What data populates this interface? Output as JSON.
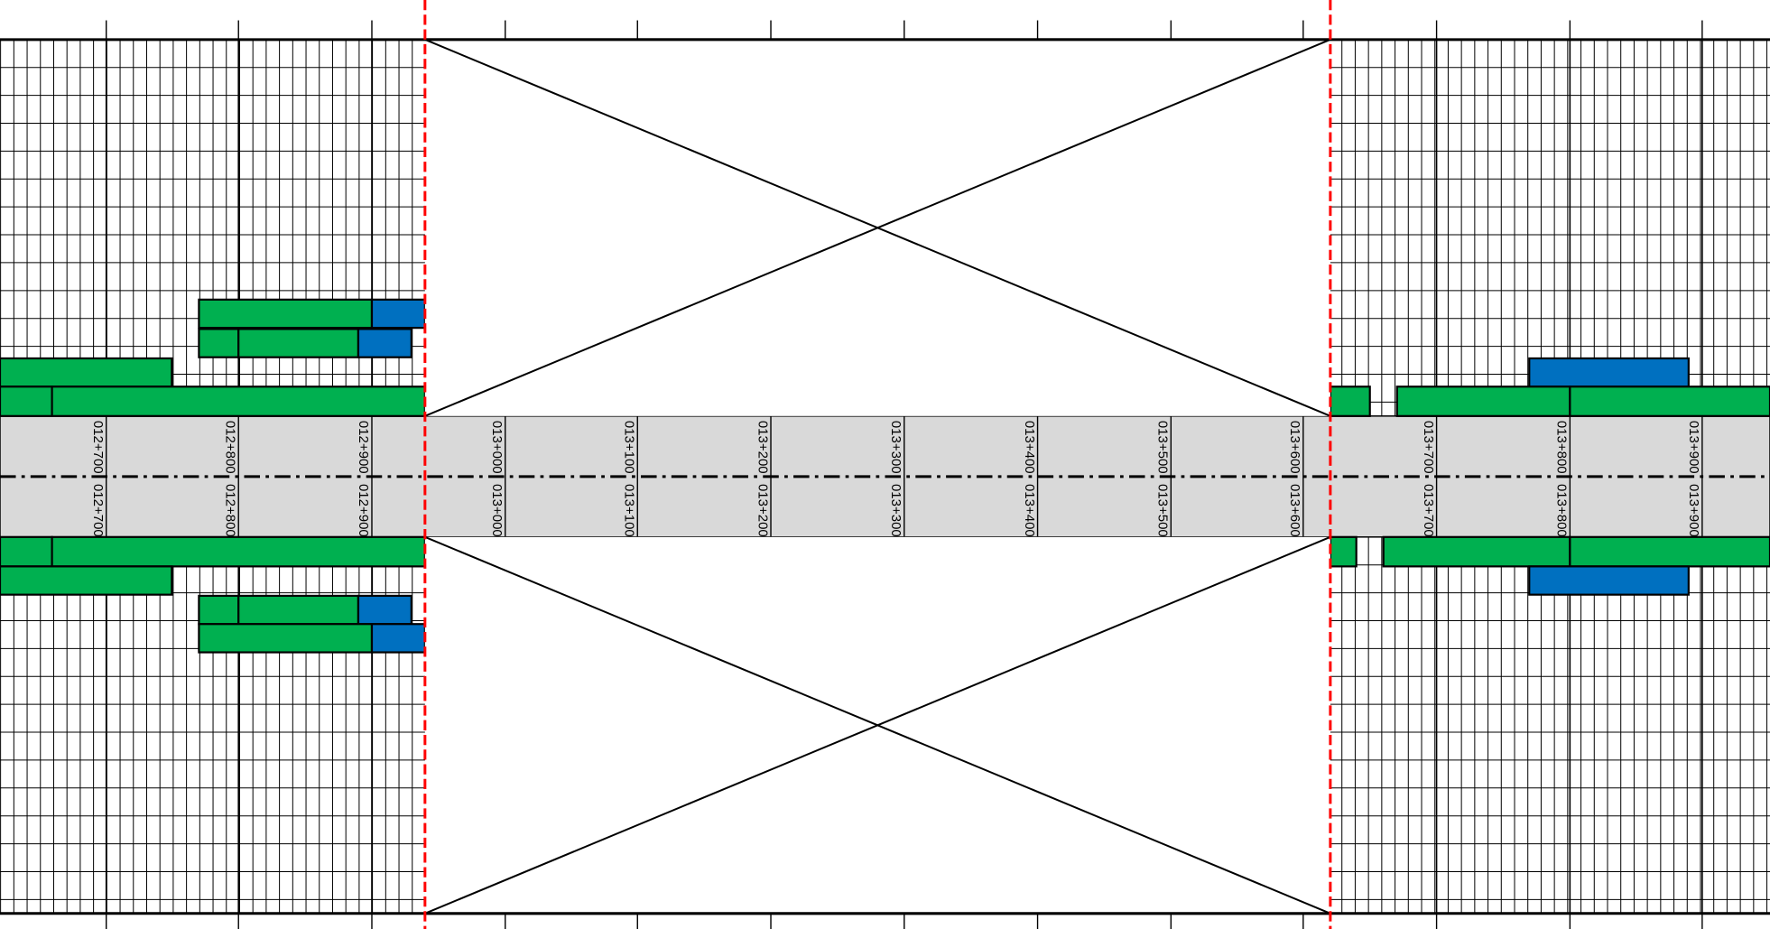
{
  "diagram": {
    "type": "linear-schedule",
    "colors": {
      "background": "#ffffff",
      "grid": "#000000",
      "road_band": "#d9d9d9",
      "green_block": "#00b050",
      "blue_block": "#0070c0",
      "boundary_dashed": "#ff0000",
      "outline": "#000000"
    },
    "chainage_upper": [
      "012+700",
      "012+800",
      "012+900",
      "013+000",
      "013+100",
      "013+200",
      "013+300",
      "013+400",
      "013+500",
      "013+600",
      "013+700",
      "013+800",
      "013+900"
    ],
    "chainage_lower": [
      "012+700",
      "012+800",
      "012+900",
      "013+000",
      "013+100",
      "013+200",
      "013+300",
      "013+400",
      "013+500",
      "013+600",
      "013+700",
      "013+800",
      "013+900"
    ],
    "excluded_zone": {
      "from": "012+940",
      "to": "013+620",
      "marker": "crossed-box"
    },
    "centerline": "dash-dot"
  }
}
